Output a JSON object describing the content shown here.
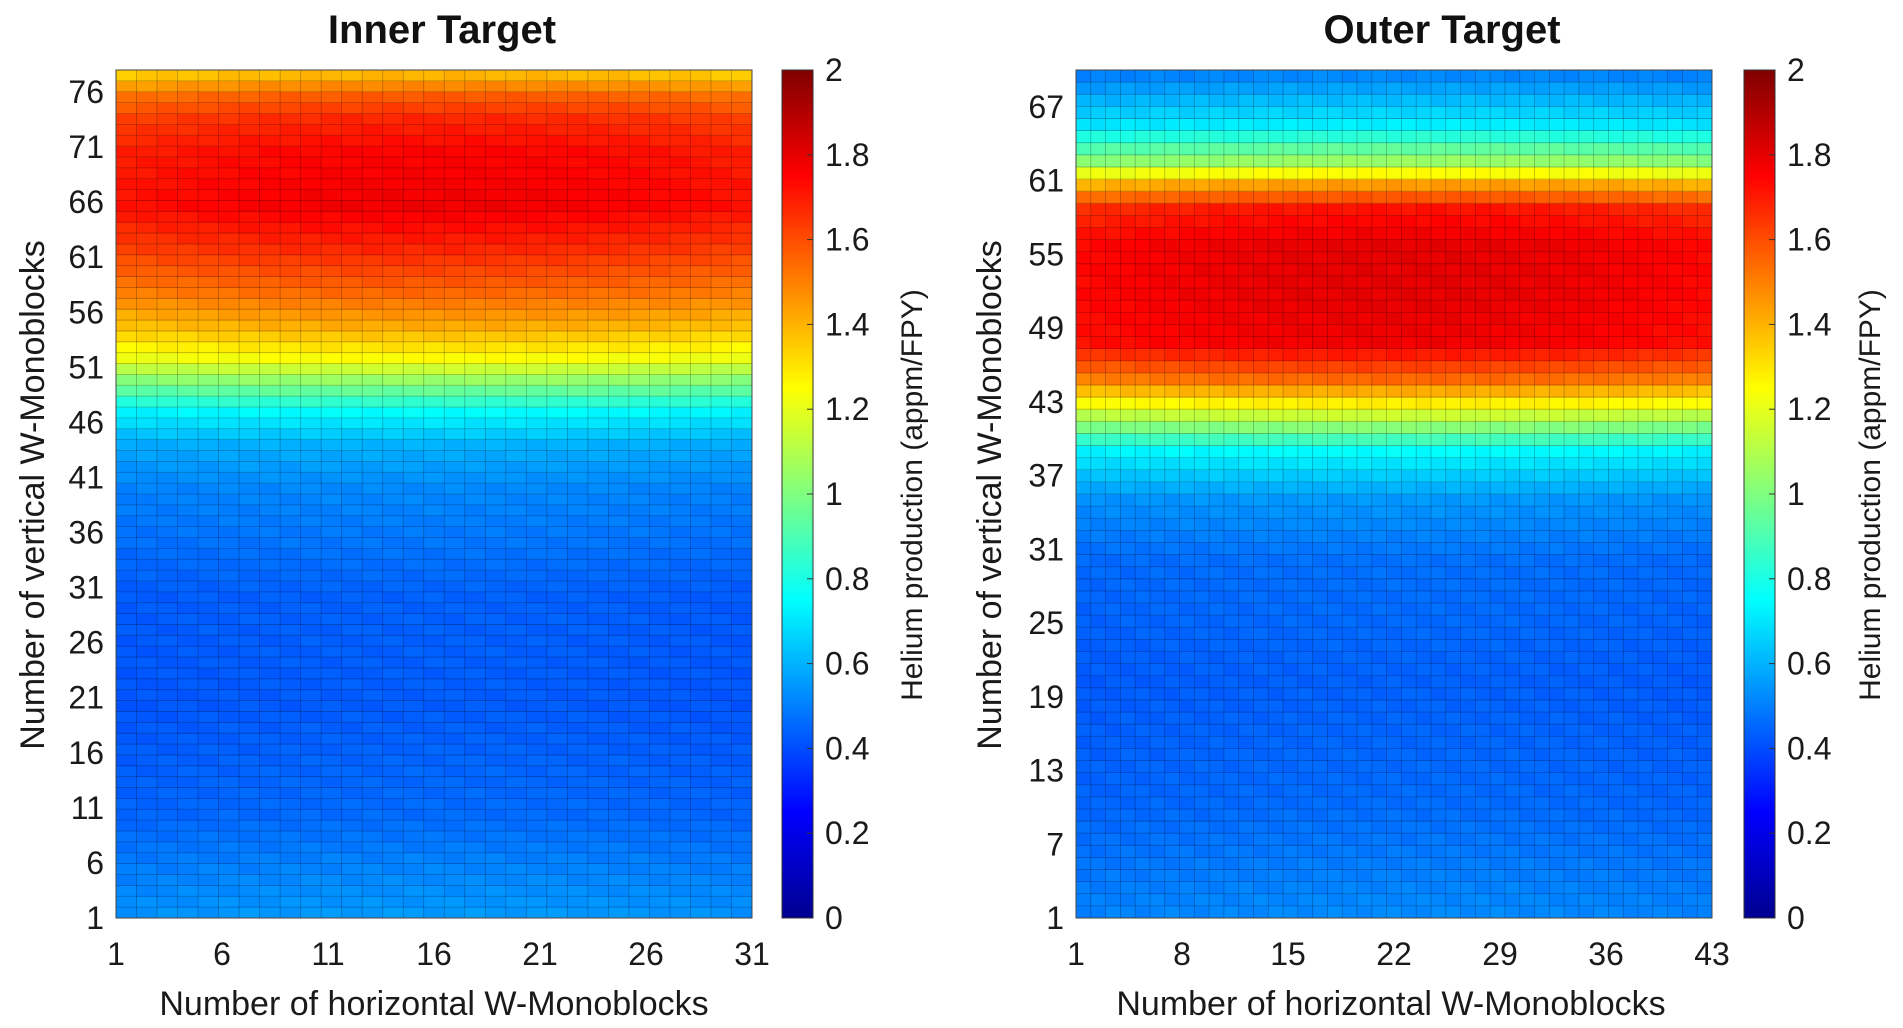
{
  "chart_data": [
    {
      "type": "heatmap",
      "title": "Inner Target",
      "xlabel": "Number of horizontal W-Monoblocks",
      "ylabel": "Number of vertical W-Monoblocks",
      "nx": 31,
      "ny": 78,
      "xticks": [
        1,
        6,
        11,
        16,
        21,
        26,
        31
      ],
      "yticks": [
        1,
        6,
        11,
        16,
        21,
        26,
        31,
        36,
        41,
        46,
        51,
        56,
        61,
        66,
        71,
        76
      ],
      "profile": {
        "y": [
          1,
          10,
          20,
          30,
          40,
          44,
          47,
          50,
          52,
          55,
          58,
          62,
          66,
          71,
          74,
          76,
          78
        ],
        "v": [
          0.55,
          0.46,
          0.43,
          0.44,
          0.52,
          0.6,
          0.75,
          1.05,
          1.25,
          1.42,
          1.55,
          1.68,
          1.78,
          1.75,
          1.68,
          1.58,
          1.4
        ]
      },
      "colorbar": {
        "label": "Helium production (appm/FPY)",
        "range": [
          0,
          2
        ],
        "ticks": [
          "0",
          "0.2",
          "0.4",
          "0.6",
          "0.8",
          "1",
          "1.2",
          "1.4",
          "1.6",
          "1.8",
          "2"
        ]
      }
    },
    {
      "type": "heatmap",
      "title": "Outer Target",
      "xlabel": "Number of horizontal W-Monoblocks",
      "ylabel": "Number of vertical W-Monoblocks",
      "nx": 43,
      "ny": 70,
      "xticks": [
        1,
        8,
        15,
        22,
        29,
        36,
        43
      ],
      "yticks": [
        1,
        7,
        13,
        19,
        25,
        31,
        37,
        43,
        49,
        55,
        61,
        67
      ],
      "profile": {
        "y": [
          1,
          10,
          20,
          30,
          35,
          39,
          42,
          45,
          48,
          52,
          56,
          59,
          61,
          63,
          66,
          70
        ],
        "v": [
          0.52,
          0.46,
          0.44,
          0.47,
          0.55,
          0.75,
          1.15,
          1.55,
          1.78,
          1.8,
          1.8,
          1.72,
          1.45,
          1.05,
          0.72,
          0.52
        ]
      },
      "colorbar": {
        "label": "Helium production (appm/FPY)",
        "range": [
          0,
          2
        ],
        "ticks": [
          "0",
          "0.2",
          "0.4",
          "0.6",
          "0.8",
          "1",
          "1.2",
          "1.4",
          "1.6",
          "1.8",
          "2"
        ]
      }
    }
  ]
}
